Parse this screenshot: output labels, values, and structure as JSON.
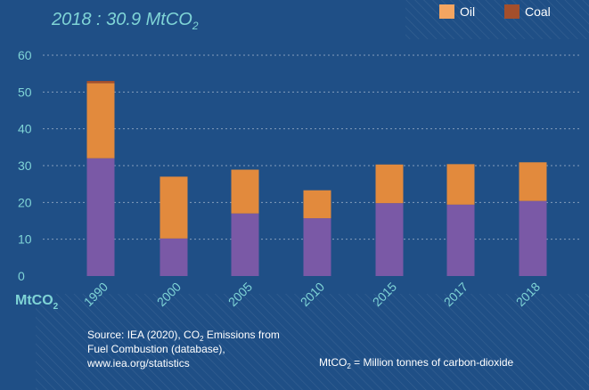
{
  "chart_data": {
    "type": "bar",
    "stacked": true,
    "title": "2018 : 30.9 MtCO",
    "title_sub": "2",
    "y_unit_label": "MtCO",
    "y_unit_sub": "2",
    "ylim": [
      0,
      60
    ],
    "yticks": [
      "0",
      "10",
      "20",
      "30",
      "40",
      "50",
      "60"
    ],
    "categories": [
      "1990",
      "2000",
      "2005",
      "2010",
      "2015",
      "2017",
      "2018"
    ],
    "grid": "horizontal-dashed",
    "legend_position": "top-right",
    "series": [
      {
        "key": "purple",
        "values": [
          32.0,
          10.2,
          17.0,
          15.7,
          19.8,
          19.4,
          20.4
        ]
      },
      {
        "name": "Oil",
        "values": [
          20.4,
          16.8,
          11.9,
          7.6,
          10.5,
          11.0,
          10.5
        ]
      },
      {
        "name": "Coal",
        "values": [
          0.6,
          0,
          0,
          0,
          0,
          0,
          0
        ]
      }
    ]
  },
  "colors": {
    "background": "#1f4f86",
    "purple": "#7a59a6",
    "oil": "#e28a3d",
    "coal": "#a44f2c",
    "legend_oil": "#f4a561",
    "axis_text": "#7fd4d6",
    "white": "#ffffff"
  },
  "source": {
    "line1_a": "Source: IEA (2020), CO",
    "line1_sub": "2",
    "line1_b": " Emissions from",
    "line2": "Fuel Combustion (database),",
    "line3": "www.iea.org/statistics"
  },
  "unit_note": {
    "a": "MtCO",
    "sub": "2",
    "b": " = Million tonnes of carbon-dioxide"
  }
}
